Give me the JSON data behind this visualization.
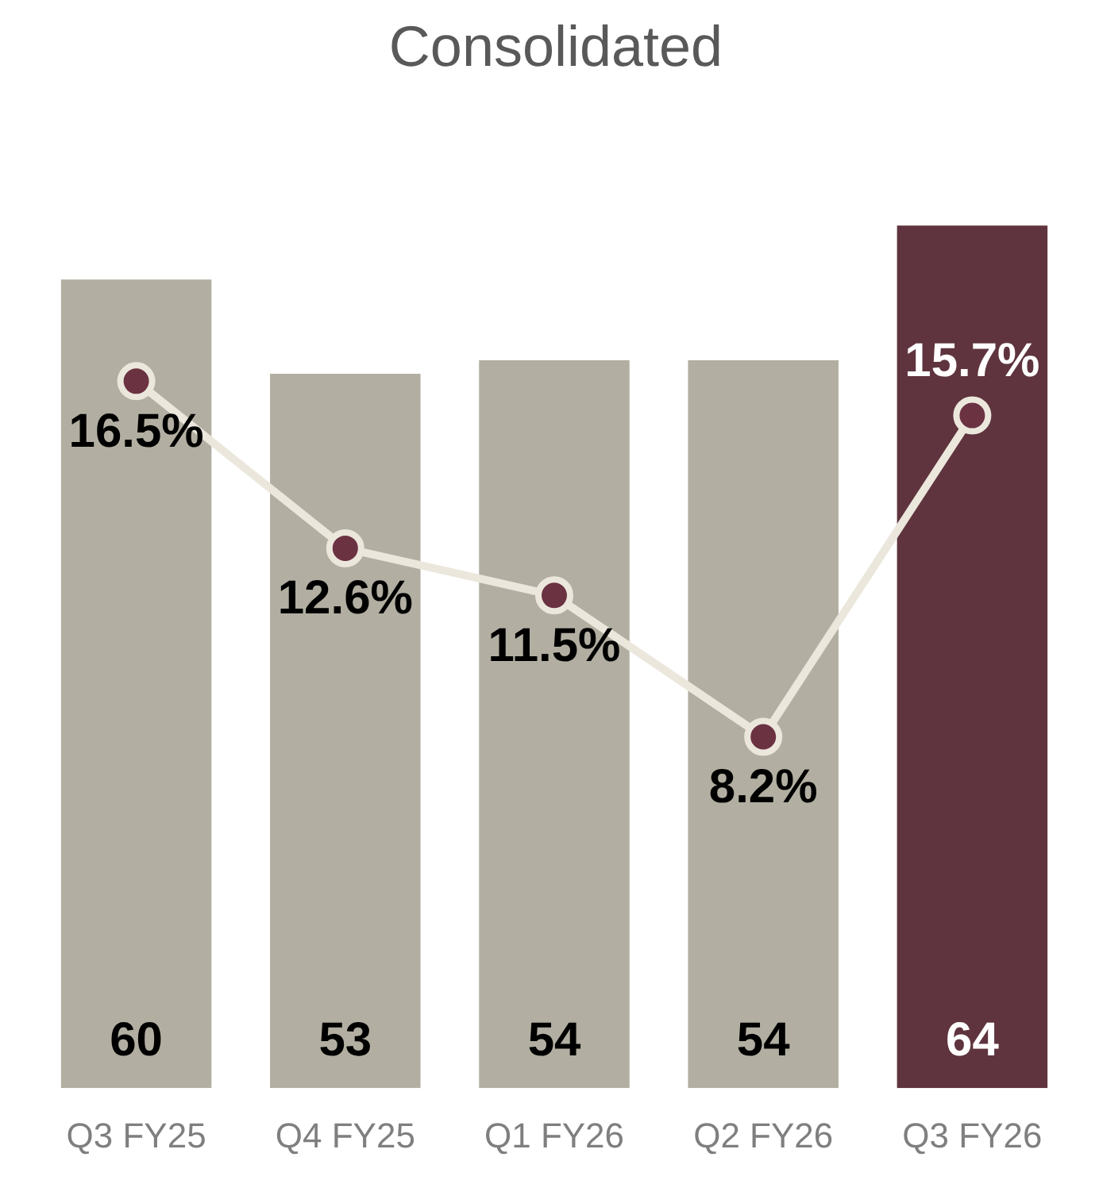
{
  "chart_data": {
    "type": "bar",
    "title": "Consolidated",
    "categories": [
      "Q3 FY25",
      "Q4 FY25",
      "Q1 FY26",
      "Q2 FY26",
      "Q3 FY26"
    ],
    "series": [
      {
        "colors": [
          "#b2afa2",
          "#b2afa2",
          "#b2afa2",
          "#b2afa2",
          "#5f343e"
        ],
        "values": [
          60,
          53,
          54,
          54,
          64
        ],
        "value_labels": [
          "60",
          "53",
          "54",
          "54",
          "64"
        ]
      },
      {
        "type": "line",
        "axis": "y2",
        "color": "#ebe7dc",
        "values": [
          16.5,
          12.6,
          11.5,
          8.2,
          15.7
        ],
        "value_labels": [
          "16.5%",
          "12.6%",
          "11.5%",
          "8.2%",
          "15.7%"
        ]
      }
    ],
    "marker": "circle",
    "tick_labels": "x",
    "grid": false,
    "legend": false
  }
}
